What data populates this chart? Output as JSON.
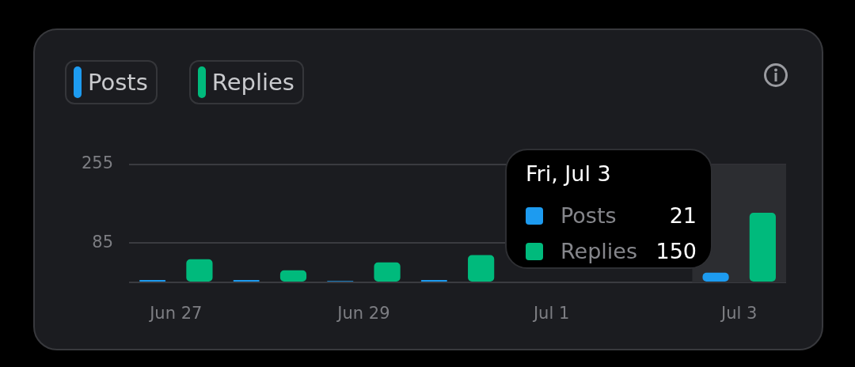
{
  "chart_data": {
    "type": "bar",
    "categories": [
      "Jun 27",
      null,
      "Jun 29",
      null,
      "Jul 1",
      null,
      "Jul 3"
    ],
    "series": [
      {
        "name": "Posts",
        "color": "#1d9bf0",
        "values": [
          5,
          5,
          3,
          5,
          null,
          null,
          21
        ]
      },
      {
        "name": "Replies",
        "color": "#00ba7c",
        "values": [
          50,
          26,
          43,
          59,
          null,
          null,
          150
        ]
      }
    ],
    "ylim": [
      0,
      255
    ],
    "yticks": [
      {
        "value": 0,
        "label": null
      },
      85,
      255
    ],
    "grid": "y",
    "legend": "top left",
    "bands": [
      {
        "axis": "x",
        "from": "Jul 3",
        "to": "Jul 3",
        "color": "#2c2d31"
      }
    ],
    "annotations": [
      "Fri, Jul 3",
      "Posts",
      "21",
      "Replies",
      "150"
    ]
  }
}
